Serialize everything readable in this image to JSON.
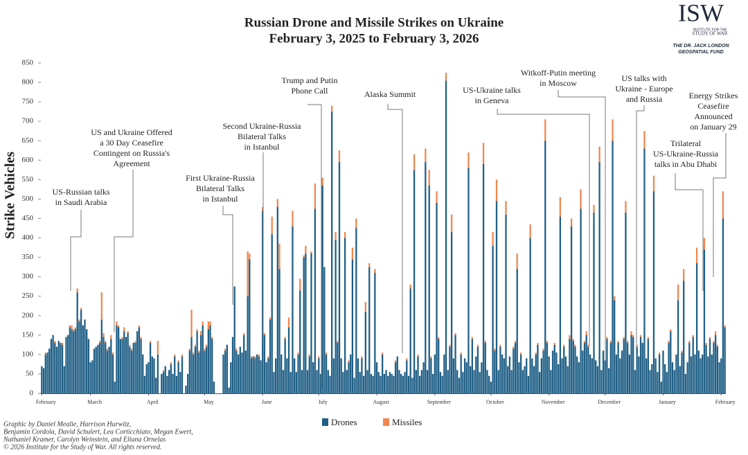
{
  "chart_data": {
    "type": "bar",
    "stacked": true,
    "title": "Russian Drone and Missile Strikes on Ukraine",
    "subtitle": "February 3, 2025 to February 3, 2026",
    "ylabel": "Strike Vehicles",
    "ylim": [
      0,
      850
    ],
    "yticks": [
      0,
      50,
      100,
      150,
      200,
      250,
      300,
      350,
      400,
      450,
      500,
      550,
      600,
      650,
      700,
      750,
      800,
      850
    ],
    "categories": [
      "February",
      null,
      null,
      null,
      null,
      null,
      null,
      null,
      null,
      null,
      null,
      null,
      null,
      null,
      null,
      null,
      null,
      null,
      null,
      null,
      null,
      null,
      null,
      null,
      null,
      null,
      "March",
      null,
      null,
      null,
      null,
      null,
      null,
      null,
      null,
      null,
      null,
      null,
      null,
      null,
      null,
      null,
      null,
      null,
      null,
      null,
      null,
      null,
      null,
      null,
      null,
      null,
      null,
      null,
      null,
      null,
      null,
      "April",
      null,
      null,
      null,
      null,
      null,
      null,
      null,
      null,
      null,
      null,
      null,
      null,
      null,
      null,
      null,
      null,
      null,
      null,
      null,
      null,
      null,
      null,
      null,
      null,
      null,
      null,
      null,
      null,
      null,
      "May",
      null,
      null,
      null,
      null,
      null,
      null,
      null,
      null,
      null,
      null,
      null,
      null,
      null,
      null,
      null,
      null,
      null,
      null,
      null,
      null,
      null,
      null,
      null,
      null,
      null,
      null,
      null,
      null,
      null,
      null,
      "June",
      null,
      null,
      null,
      null,
      null,
      null,
      null,
      null,
      null,
      null,
      null,
      null,
      null,
      null,
      null,
      null,
      null,
      null,
      null,
      null,
      null,
      null,
      null,
      null,
      null,
      null,
      null,
      null,
      null,
      "July",
      null,
      null,
      null,
      null,
      null,
      null,
      null,
      null,
      null,
      null,
      null,
      null,
      null,
      null,
      null,
      null,
      null,
      null,
      null,
      null,
      null,
      null,
      null,
      null,
      null,
      null,
      null,
      null,
      null,
      null,
      "August",
      null,
      null,
      null,
      null,
      null,
      null,
      null,
      null,
      null,
      null,
      null,
      null,
      null,
      null,
      null,
      null,
      null,
      null,
      null,
      null,
      null,
      null,
      null,
      null,
      null,
      null,
      null,
      null,
      null,
      null,
      "September",
      null,
      null,
      null,
      null,
      null,
      null,
      null,
      null,
      null,
      null,
      null,
      null,
      null,
      null,
      null,
      null,
      null,
      null,
      null,
      null,
      null,
      null,
      null,
      null,
      null,
      null,
      null,
      null,
      null,
      "October",
      null,
      null,
      null,
      null,
      null,
      null,
      null,
      null,
      null,
      null,
      null,
      null,
      null,
      null,
      null,
      null,
      null,
      null,
      null,
      null,
      null,
      null,
      null,
      null,
      null,
      null,
      null,
      null,
      null,
      null,
      "November",
      null,
      null,
      null,
      null,
      null,
      null,
      null,
      null,
      null,
      null,
      null,
      null,
      null,
      null,
      null,
      null,
      null,
      null,
      null,
      null,
      null,
      null,
      null,
      null,
      null,
      null,
      null,
      null,
      null,
      "December",
      null,
      null,
      null,
      null,
      null,
      null,
      null,
      null,
      null,
      null,
      null,
      null,
      null,
      null,
      null,
      null,
      null,
      null,
      null,
      null,
      null,
      null,
      null,
      null,
      null,
      null,
      null,
      null,
      null,
      null,
      "January",
      null,
      null,
      null,
      null,
      null,
      null,
      null,
      null,
      null,
      null,
      null,
      null,
      null,
      null,
      null,
      null,
      null,
      null,
      null,
      null,
      null,
      null,
      null,
      null,
      null,
      null,
      null,
      null,
      null,
      null,
      "February",
      null,
      null
    ],
    "series": [
      {
        "name": "Drones",
        "color": "#1f5f86",
        "values": [
          70,
          65,
          100,
          105,
          115,
          140,
          150,
          130,
          120,
          135,
          130,
          125,
          70,
          145,
          150,
          170,
          165,
          160,
          165,
          260,
          185,
          215,
          175,
          190,
          165,
          140,
          80,
          85,
          115,
          120,
          125,
          130,
          190,
          145,
          130,
          110,
          120,
          140,
          100,
          30,
          175,
          170,
          140,
          140,
          160,
          145,
          155,
          120,
          110,
          130,
          130,
          160,
          170,
          140,
          100,
          45,
          75,
          80,
          130,
          95,
          90,
          40,
          100,
          null,
          50,
          55,
          70,
          45,
          60,
          75,
          50,
          95,
          45,
          80,
          55,
          95,
          null,
          20,
          50,
          110,
          145,
          100,
          120,
          160,
          105,
          150,
          175,
          110,
          120,
          165,
          175,
          140,
          30,
          null,
          null,
          null,
          null,
          100,
          110,
          125,
          15,
          80,
          145,
          275,
          110,
          100,
          120,
          105,
          150,
          110,
          250,
          345,
          90,
          95,
          90,
          100,
          95,
          85,
          470,
          150,
          80,
          90,
          190,
          410,
          55,
          90,
          480,
          320,
          100,
          60,
          140,
          90,
          170,
          55,
          430,
          90,
          55,
          100,
          265,
          60,
          350,
          360,
          60,
          95,
          360,
          80,
          475,
          60,
          90,
          50,
          535,
          325,
          100,
          60,
          45,
          725,
          90,
          395,
          130,
          595,
          90,
          55,
          400,
          60,
          80,
          100,
          345,
          40,
          425,
          90,
          55,
          90,
          45,
          210,
          60,
          325,
          50,
          45,
          310,
          80,
          55,
          45,
          100,
          50,
          60,
          45,
          55,
          50,
          45,
          80,
          95,
          60,
          50,
          45,
          55,
          85,
          45,
          270,
          40,
          575,
          60,
          95,
          45,
          60,
          80,
          595,
          60,
          535,
          90,
          50,
          100,
          490,
          140,
          55,
          45,
          100,
          805,
          60,
          120,
          415,
          90,
          150,
          60,
          40,
          100,
          55,
          90,
          80,
          580,
          70,
          140,
          60,
          95,
          120,
          55,
          80,
          590,
          130,
          60,
          45,
          30,
          380,
          110,
          495,
          60,
          120,
          100,
          90,
          460,
          70,
          95,
          60,
          115,
          130,
          320,
          80,
          100,
          60,
          70,
          90,
          45,
          400,
          90,
          70,
          100,
          125,
          55,
          90,
          110,
          650,
          130,
          95,
          60,
          110,
          125,
          105,
          75,
          455,
          90,
          120,
          95,
          70,
          140,
          430,
          135,
          120,
          95,
          80,
          475,
          110,
          130,
          150,
          120,
          100,
          90,
          465,
          85,
          70,
          595,
          60,
          110,
          85,
          140,
          65,
          130,
          650,
          240,
          100,
          130,
          90,
          110,
          140,
          465,
          130,
          100,
          150,
          145,
          60,
          120,
          95,
          145,
          130,
          630,
          90,
          140,
          60,
          75,
          520,
          90,
          55,
          100,
          30,
          110,
          75,
          55,
          130,
          160,
          80,
          60,
          100,
          240,
          70,
          105,
          290,
          50,
          80,
          130,
          95,
          145,
          100,
          335,
          110,
          90,
          100,
          370,
          125,
          95,
          140,
          100,
          130,
          150,
          120,
          80,
          90,
          450,
          170
        ]
      },
      {
        "name": "Missiles",
        "color": "#f0874f",
        "values": [
          0,
          0,
          5,
          0,
          0,
          0,
          0,
          5,
          0,
          0,
          0,
          5,
          0,
          0,
          0,
          5,
          10,
          5,
          5,
          10,
          5,
          5,
          0,
          0,
          0,
          0,
          0,
          0,
          0,
          0,
          0,
          5,
          70,
          10,
          5,
          5,
          0,
          10,
          5,
          0,
          10,
          5,
          0,
          5,
          10,
          0,
          5,
          5,
          5,
          0,
          5,
          0,
          5,
          5,
          0,
          0,
          0,
          0,
          5,
          0,
          0,
          0,
          35,
          null,
          0,
          5,
          0,
          0,
          0,
          5,
          0,
          5,
          0,
          5,
          0,
          5,
          null,
          0,
          0,
          5,
          70,
          5,
          5,
          5,
          5,
          10,
          10,
          5,
          5,
          20,
          10,
          5,
          0,
          null,
          null,
          null,
          null,
          0,
          5,
          0,
          0,
          0,
          0,
          0,
          5,
          0,
          0,
          0,
          5,
          0,
          115,
          15,
          5,
          0,
          5,
          0,
          5,
          0,
          10,
          5,
          0,
          5,
          5,
          45,
          0,
          0,
          20,
          65,
          0,
          0,
          5,
          0,
          25,
          0,
          40,
          0,
          0,
          5,
          30,
          0,
          5,
          20,
          0,
          5,
          5,
          0,
          65,
          0,
          5,
          0,
          20,
          0,
          5,
          0,
          0,
          15,
          0,
          20,
          5,
          30,
          0,
          0,
          15,
          0,
          5,
          0,
          30,
          0,
          25,
          0,
          0,
          5,
          0,
          25,
          0,
          10,
          0,
          0,
          10,
          0,
          0,
          0,
          5,
          0,
          0,
          0,
          0,
          0,
          0,
          5,
          0,
          0,
          0,
          0,
          0,
          5,
          0,
          10,
          0,
          40,
          0,
          5,
          0,
          0,
          0,
          35,
          0,
          40,
          5,
          0,
          0,
          30,
          5,
          0,
          0,
          0,
          20,
          0,
          5,
          45,
          0,
          5,
          0,
          0,
          5,
          0,
          0,
          0,
          40,
          0,
          5,
          0,
          0,
          5,
          0,
          0,
          55,
          5,
          0,
          0,
          0,
          35,
          5,
          55,
          0,
          5,
          0,
          0,
          35,
          0,
          0,
          0,
          5,
          5,
          40,
          0,
          5,
          0,
          0,
          0,
          0,
          35,
          0,
          0,
          5,
          5,
          0,
          0,
          5,
          55,
          5,
          0,
          0,
          0,
          5,
          0,
          0,
          50,
          0,
          5,
          0,
          0,
          10,
          20,
          5,
          5,
          0,
          0,
          50,
          0,
          5,
          10,
          5,
          0,
          0,
          20,
          0,
          0,
          40,
          0,
          0,
          0,
          5,
          0,
          5,
          55,
          10,
          0,
          5,
          0,
          0,
          5,
          30,
          5,
          0,
          10,
          5,
          0,
          5,
          0,
          5,
          0,
          45,
          0,
          5,
          0,
          0,
          40,
          0,
          0,
          5,
          0,
          0,
          0,
          0,
          5,
          5,
          0,
          0,
          0,
          40,
          0,
          5,
          30,
          0,
          0,
          5,
          0,
          5,
          0,
          40,
          0,
          0,
          0,
          30,
          5,
          0,
          5,
          0,
          5,
          10,
          5,
          0,
          0,
          70,
          5
        ]
      }
    ],
    "annotations": [
      {
        "lines": [
          "US-Russian talks",
          "in Saudi Arabia"
        ]
      },
      {
        "lines": [
          "US and Ukraine Offered",
          "a 30 Day Ceasefire",
          "Contingent on Russia's",
          "Agreement"
        ]
      },
      {
        "lines": [
          "First Ukraine-Russia",
          "Bilateral Talks",
          "in Istanbul"
        ]
      },
      {
        "lines": [
          "Second Ukraine-Russia",
          "Bilateral Talks",
          "in Istanbul"
        ]
      },
      {
        "lines": [
          "Trump and Putin",
          "Phone Call"
        ]
      },
      {
        "lines": [
          "Alaska Summit"
        ]
      },
      {
        "lines": [
          "US-Ukraine talks",
          "in Geneva"
        ]
      },
      {
        "lines": [
          "Witkoff-Putin meeting",
          "in Moscow"
        ]
      },
      {
        "lines": [
          "US talks with",
          "Ukraine - Europe",
          "and Russia"
        ]
      },
      {
        "lines": [
          "Energy Strikes",
          "Ceasefire",
          "Announced",
          "on January 29"
        ]
      },
      {
        "lines": [
          "Trilateral",
          "US-Ukraine-Russia",
          "talks in Abu Dhabi"
        ]
      }
    ],
    "credits": [
      "Graphic by Daniel Mealie, Harrison Hurwitz,",
      "Benjamin Cordola, David Schulert, Lea Corticchiato, Megan Ewert,",
      "Nathaniel Kramer, Carolyn Weinstein, and Eliana Ornelas",
      "© 2026 Institute for the Study of War. All rights reserved."
    ],
    "logo": {
      "text": "ISW",
      "tagline": [
        "INSTITUTE FOR THE",
        "STUDY OF WAR"
      ],
      "fund": [
        "THE DR. JACK LONDON",
        "GEOSPATIAL FUND"
      ]
    }
  }
}
